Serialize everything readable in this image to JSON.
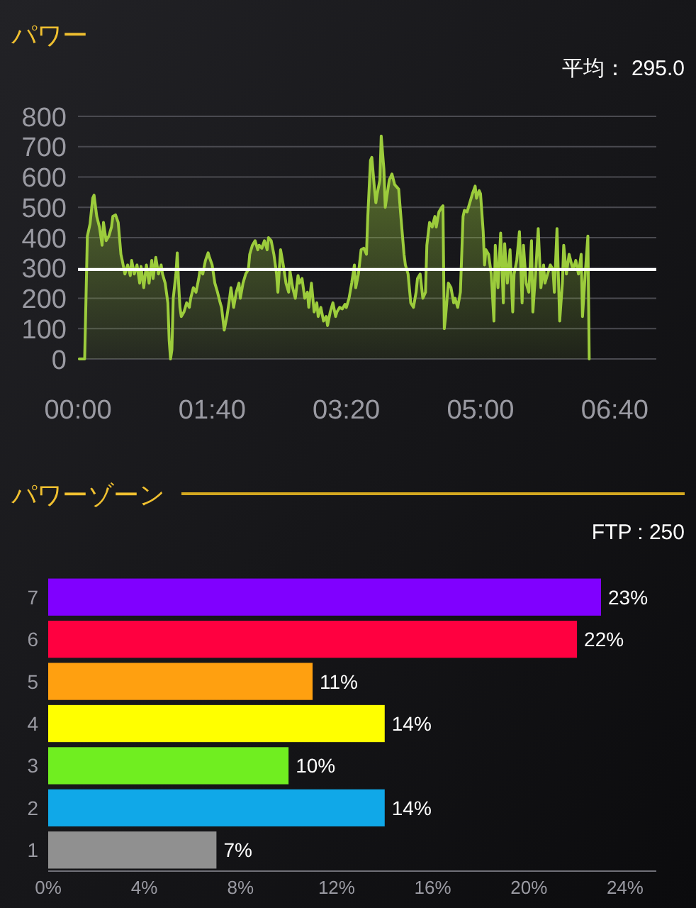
{
  "chart_data": [
    {
      "type": "area",
      "title": "パワー",
      "color": "#9ccc3c",
      "x": [
        1,
        5,
        7,
        9,
        11,
        12,
        14,
        16,
        18,
        19,
        21,
        23,
        25,
        26,
        28,
        30,
        32,
        33,
        35,
        37,
        39,
        40,
        42,
        44,
        46,
        47,
        49,
        51,
        53,
        55,
        56,
        58,
        60,
        62,
        63,
        65,
        67,
        68,
        69,
        70,
        71,
        73,
        74,
        75,
        76,
        77,
        79,
        81,
        83,
        84,
        86,
        88,
        90,
        91,
        93,
        95,
        97,
        98,
        100,
        102,
        104,
        106,
        107,
        109,
        111,
        113,
        114,
        116,
        118,
        120,
        121,
        123,
        125,
        127,
        128,
        130,
        132,
        134,
        135,
        137,
        139,
        141,
        142,
        144,
        146,
        148,
        149,
        151,
        153,
        155,
        157,
        158,
        160,
        162,
        164,
        165,
        167,
        169,
        171,
        172,
        174,
        176,
        178,
        179,
        181,
        183,
        185,
        186,
        188,
        190,
        192,
        193,
        195,
        197,
        199,
        200,
        202,
        204,
        206,
        207,
        209,
        211,
        213,
        215,
        216,
        218,
        219,
        221,
        222,
        223,
        225,
        226,
        228,
        229,
        230,
        232,
        234,
        236,
        237,
        239,
        241,
        243,
        244,
        246,
        248,
        250,
        252,
        253,
        255,
        257,
        259,
        260,
        262,
        264,
        266,
        267,
        269,
        271,
        272,
        273,
        274,
        276,
        278,
        280,
        281,
        283,
        285,
        287,
        288,
        290,
        292,
        294,
        296,
        297,
        299,
        300,
        302,
        303,
        304,
        306,
        308,
        310,
        311,
        313,
        315,
        317,
        318,
        320,
        322,
        324,
        325,
        327,
        329,
        331,
        332,
        334,
        336,
        338,
        339,
        341,
        343,
        345,
        347,
        348,
        350,
        352,
        354,
        355,
        357,
        359,
        361,
        362,
        364,
        366,
        368,
        369,
        371,
        373,
        375,
        376,
        378,
        380,
        381
      ],
      "values": [
        0,
        0,
        405,
        445,
        530,
        540,
        470,
        435,
        375,
        450,
        390,
        405,
        435,
        470,
        475,
        450,
        345,
        325,
        280,
        310,
        275,
        325,
        280,
        310,
        250,
        305,
        235,
        310,
        250,
        325,
        265,
        335,
        280,
        310,
        280,
        250,
        185,
        60,
        0,
        30,
        200,
        280,
        350,
        250,
        170,
        140,
        155,
        185,
        170,
        200,
        235,
        220,
        265,
        295,
        280,
        325,
        350,
        335,
        310,
        250,
        220,
        185,
        170,
        95,
        140,
        200,
        235,
        170,
        220,
        250,
        200,
        250,
        280,
        295,
        345,
        375,
        390,
        360,
        375,
        365,
        390,
        360,
        400,
        390,
        345,
        280,
        220,
        360,
        310,
        250,
        220,
        290,
        235,
        200,
        275,
        250,
        265,
        200,
        220,
        170,
        250,
        155,
        185,
        140,
        170,
        125,
        140,
        110,
        155,
        185,
        140,
        155,
        170,
        165,
        180,
        170,
        200,
        250,
        310,
        235,
        280,
        360,
        365,
        345,
        470,
        655,
        665,
        560,
        515,
        545,
        590,
        735,
        625,
        500,
        530,
        590,
        610,
        575,
        570,
        560,
        450,
        345,
        310,
        280,
        185,
        170,
        220,
        265,
        280,
        200,
        220,
        375,
        450,
        435,
        470,
        435,
        485,
        500,
        505,
        100,
        140,
        250,
        235,
        185,
        200,
        170,
        220,
        470,
        490,
        485,
        515,
        545,
        570,
        530,
        555,
        545,
        420,
        310,
        360,
        345,
        280,
        125,
        375,
        235,
        415,
        185,
        380,
        250,
        360,
        155,
        280,
        325,
        420,
        185,
        375,
        250,
        220,
        390,
        155,
        280,
        430,
        235,
        310,
        250,
        280,
        310,
        295,
        220,
        430,
        125,
        250,
        375,
        280,
        345,
        310,
        295,
        325,
        280,
        345,
        140,
        280,
        405,
        0
      ],
      "xlim": [
        0,
        431
      ],
      "ylim": [
        0,
        800
      ],
      "xticks": [
        {
          "value": 0,
          "label": "00:00"
        },
        {
          "value": 100,
          "label": "01:40"
        },
        {
          "value": 200,
          "label": "03:20"
        },
        {
          "value": 300,
          "label": "05:00"
        },
        {
          "value": 400,
          "label": "06:40"
        }
      ],
      "yticks": [
        0,
        100,
        200,
        300,
        400,
        500,
        600,
        700,
        800
      ],
      "grid": "y",
      "ref_lines": [
        {
          "axis": "y",
          "value": 295,
          "label": "平均： 295.0",
          "color": "#ffffff"
        }
      ]
    },
    {
      "type": "bar",
      "orientation": "horizontal",
      "title": "パワーゾーン",
      "annotations": [
        "FTP : 250"
      ],
      "categories": [
        "7",
        "6",
        "5",
        "4",
        "3",
        "2",
        "1"
      ],
      "values": [
        23,
        22,
        11,
        14,
        10,
        14,
        7
      ],
      "colors": [
        "#8000ff",
        "#ff0040",
        "#ffa010",
        "#ffff00",
        "#70ee20",
        "#10a8e8",
        "#909090"
      ],
      "value_labels": [
        "23%",
        "22%",
        "11%",
        "14%",
        "10%",
        "14%",
        "7%"
      ],
      "xlim": [
        0,
        25.3
      ],
      "xticks": [
        {
          "value": 0,
          "label": "0%"
        },
        {
          "value": 4,
          "label": "4%"
        },
        {
          "value": 8,
          "label": "8%"
        },
        {
          "value": 12,
          "label": "12%"
        },
        {
          "value": 16,
          "label": "16%"
        },
        {
          "value": 20,
          "label": "20%"
        },
        {
          "value": 24,
          "label": "24%"
        }
      ]
    }
  ]
}
